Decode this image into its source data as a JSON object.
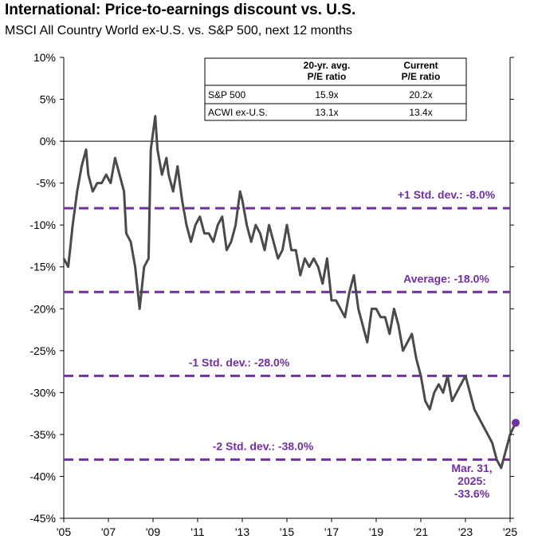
{
  "colors": {
    "line": "#4a4a4a",
    "accent": "#7030a0",
    "axis": "#000000"
  },
  "chart_data": {
    "type": "line",
    "title": "International: Price-to-earnings discount vs. U.S.",
    "subtitle": "MSCI All Country World ex-U.S. vs. S&P 500, next 12 months",
    "xlabel": "",
    "ylabel": "",
    "xlim": [
      2005,
      2025
    ],
    "ylim": [
      -45,
      10
    ],
    "y_ticks": [
      10,
      5,
      0,
      -5,
      -10,
      -15,
      -20,
      -25,
      -30,
      -35,
      -40,
      -45
    ],
    "y_tick_labels": [
      "10%",
      "5%",
      "0%",
      "-5%",
      "-10%",
      "-15%",
      "-20%",
      "-25%",
      "-30%",
      "-35%",
      "-40%",
      "-45%"
    ],
    "x_ticks": [
      2005,
      2007,
      2009,
      2011,
      2013,
      2015,
      2017,
      2019,
      2021,
      2023,
      2025
    ],
    "x_tick_labels": [
      "'05",
      "'07",
      "'09",
      "'11",
      "'13",
      "'15",
      "'17",
      "'19",
      "'21",
      "'23",
      "'25"
    ],
    "grid": false,
    "series": [
      {
        "x": [
          2005.0,
          2005.2,
          2005.4,
          2005.6,
          2005.8,
          2006.0,
          2006.1,
          2006.3,
          2006.5,
          2006.7,
          2006.9,
          2007.1,
          2007.3,
          2007.5,
          2007.7,
          2007.8,
          2008.0,
          2008.2,
          2008.4,
          2008.6,
          2008.8,
          2008.9,
          2009.1,
          2009.2,
          2009.4,
          2009.6,
          2009.7,
          2009.9,
          2010.1,
          2010.3,
          2010.5,
          2010.7,
          2010.9,
          2011.1,
          2011.3,
          2011.5,
          2011.7,
          2011.9,
          2012.1,
          2012.3,
          2012.5,
          2012.7,
          2012.9,
          2013.0,
          2013.2,
          2013.4,
          2013.6,
          2013.8,
          2014.0,
          2014.2,
          2014.4,
          2014.6,
          2014.8,
          2015.0,
          2015.2,
          2015.4,
          2015.6,
          2015.8,
          2016.0,
          2016.2,
          2016.4,
          2016.6,
          2016.8,
          2017.0,
          2017.2,
          2017.4,
          2017.6,
          2017.8,
          2018.0,
          2018.2,
          2018.4,
          2018.6,
          2018.8,
          2019.0,
          2019.2,
          2019.4,
          2019.6,
          2019.8,
          2020.0,
          2020.2,
          2020.4,
          2020.6,
          2020.8,
          2021.0,
          2021.2,
          2021.4,
          2021.6,
          2021.8,
          2022.0,
          2022.2,
          2022.4,
          2022.6,
          2022.8,
          2023.0,
          2023.2,
          2023.4,
          2023.6,
          2023.8,
          2024.0,
          2024.2,
          2024.4,
          2024.6,
          2024.8,
          2025.0,
          2025.25
        ],
        "values": [
          -14,
          -15,
          -10,
          -6,
          -3,
          -1,
          -4,
          -6,
          -5,
          -5,
          -4,
          -5,
          -2,
          -4,
          -6,
          -11,
          -12,
          -15,
          -20,
          -15,
          -14,
          -1,
          3,
          -1,
          -4,
          -2,
          -4,
          -6,
          -3,
          -7,
          -10,
          -12,
          -10,
          -9,
          -11,
          -11,
          -12,
          -10,
          -9,
          -13,
          -12,
          -10,
          -6,
          -7,
          -10,
          -12,
          -10,
          -11,
          -13,
          -10,
          -12,
          -14,
          -13,
          -10,
          -13,
          -13,
          -16,
          -14,
          -15,
          -14,
          -15,
          -17,
          -14,
          -19,
          -19,
          -20,
          -21,
          -18,
          -16,
          -20,
          -22,
          -24,
          -20,
          -20,
          -21,
          -21,
          -23,
          -20,
          -22,
          -25,
          -24,
          -23,
          -26,
          -28,
          -31,
          -32,
          -30,
          -29,
          -30,
          -28,
          -31,
          -30,
          -29,
          -28,
          -30,
          -32,
          -33,
          -34,
          -35,
          -36,
          -38,
          -39,
          -37,
          -35,
          -33.6
        ]
      }
    ],
    "reference_lines": [
      {
        "y": -8,
        "label": "+1 Std. dev.: -8.0%"
      },
      {
        "y": -18,
        "label": "Average: -18.0%"
      },
      {
        "y": -28,
        "label": "-1 Std. dev.: -28.0%"
      },
      {
        "y": -38,
        "label": "-2 Std. dev.: -38.0%"
      }
    ],
    "annotation": {
      "x": 2025.25,
      "y": -33.6,
      "lines": [
        "Mar. 31,",
        "2025:",
        "-33.6%"
      ]
    },
    "table": {
      "headers": [
        [
          "20-yr. avg.",
          "P/E ratio"
        ],
        [
          "Current",
          "P/E ratio"
        ]
      ],
      "rows": [
        {
          "label": "S&P 500",
          "avg": "15.9x",
          "current": "20.2x"
        },
        {
          "label": "ACWI ex-U.S.",
          "avg": "13.1x",
          "current": "13.4x"
        }
      ]
    }
  }
}
